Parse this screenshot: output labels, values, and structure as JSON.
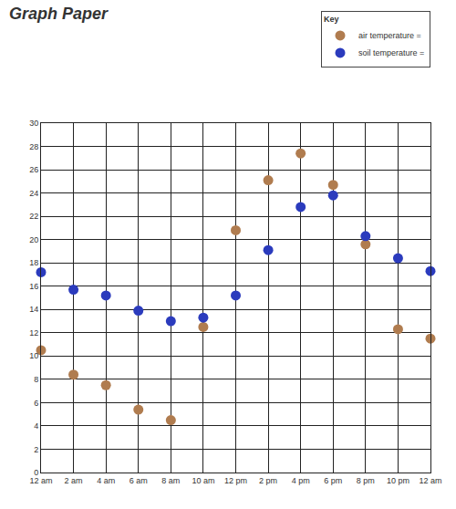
{
  "chart_data": {
    "type": "scatter",
    "title": "Graph Paper",
    "legend_title": "Key",
    "categories": [
      "12 am",
      "2 am",
      "4 am",
      "6 am",
      "8 am",
      "10 am",
      "12 pm",
      "2 pm",
      "4 pm",
      "6 pm",
      "8 pm",
      "10 pm",
      "12 am"
    ],
    "series": [
      {
        "name": "air temperature =",
        "color": "#b07c4f",
        "values": [
          10.5,
          8.4,
          7.5,
          5.4,
          4.5,
          12.5,
          20.8,
          25.1,
          27.4,
          24.7,
          19.6,
          12.3,
          11.5
        ]
      },
      {
        "name": "soil temperature =",
        "color": "#2b3bbd",
        "values": [
          17.2,
          15.7,
          15.2,
          13.9,
          13.0,
          13.3,
          15.2,
          19.1,
          22.8,
          23.8,
          20.3,
          18.4,
          17.3
        ]
      }
    ],
    "ylim": [
      0,
      30
    ],
    "yticks": [
      0,
      2,
      4,
      6,
      8,
      10,
      12,
      14,
      16,
      18,
      20,
      22,
      24,
      26,
      28,
      30
    ],
    "grid": true,
    "legend": "top right"
  }
}
